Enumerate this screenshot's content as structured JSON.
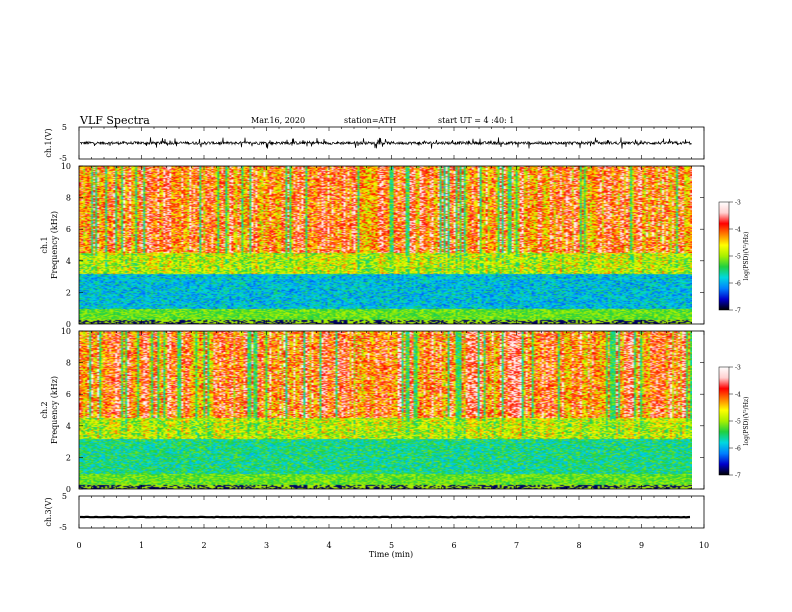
{
  "header": {
    "title": "VLF  Spectra",
    "date": "Mar.16, 2020",
    "station": "station=ATH",
    "start": "start  UT  =   4  :40: 1"
  },
  "chart_data": [
    {
      "type": "line",
      "panel": "ch1-waveform",
      "ylabel": "ch.1(V)",
      "ylim": [
        -5,
        5
      ],
      "yticks": [
        "5",
        "-5"
      ],
      "trace_baseline_v": 0,
      "trace_amplitude_v": [
        -1.8,
        1.8
      ]
    },
    {
      "type": "heatmap",
      "panel": "ch1-spectrogram",
      "ylabel": "Frequency (kHz)",
      "channel_label": "ch.1",
      "ylim": [
        0,
        10
      ],
      "yticks": [
        "0",
        "2",
        "4",
        "6",
        "8",
        "10"
      ],
      "colorbar": {
        "label": "log(PSD)(V²/Hz)",
        "range": [
          -7,
          -3
        ],
        "ticks": [
          "-3",
          "-4",
          "-5",
          "-6",
          "-7"
        ],
        "colors": [
          "#000000",
          "#0000cc",
          "#0080ff",
          "#00d8e0",
          "#20d040",
          "#a8f000",
          "#ffff00",
          "#ff8000",
          "#ff0000",
          "#ffd0d0",
          "#ffffff"
        ]
      }
    },
    {
      "type": "heatmap",
      "panel": "ch2-spectrogram",
      "ylabel": "Frequency (kHz)",
      "channel_label": "ch.2",
      "ylim": [
        0,
        10
      ],
      "yticks": [
        "0",
        "2",
        "4",
        "6",
        "8",
        "10"
      ],
      "colorbar": {
        "label": "log(PSD)(V²/Hz)",
        "range": [
          -7,
          -3
        ],
        "ticks": [
          "-3",
          "-4",
          "-5",
          "-6",
          "-7"
        ],
        "colors": [
          "#000000",
          "#0000cc",
          "#0080ff",
          "#00d8e0",
          "#20d040",
          "#a8f000",
          "#ffff00",
          "#ff8000",
          "#ff0000",
          "#ffd0d0",
          "#ffffff"
        ]
      }
    },
    {
      "type": "line",
      "panel": "ch3-waveform",
      "ylabel": "ch.3(V)",
      "ylim": [
        -5,
        5
      ],
      "yticks": [
        "5",
        "-5"
      ],
      "trace_baseline_v": -1.6
    }
  ],
  "x_axis": {
    "xlabel": "Time  (min)",
    "xlim": [
      0,
      10
    ],
    "data_end_min": 9.8,
    "ticks": [
      "0",
      "1",
      "2",
      "3",
      "4",
      "5",
      "6",
      "7",
      "8",
      "9",
      "10"
    ]
  }
}
